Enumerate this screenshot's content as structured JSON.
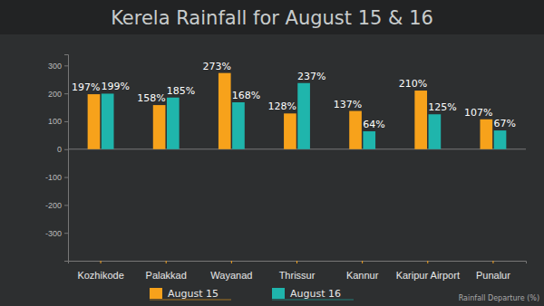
{
  "chart_data": {
    "type": "bar",
    "title": "Kerela Rainfall for August 15 & 16",
    "annotation": "Rainfall Departure (%)",
    "categories": [
      "Kozhikode",
      "Palakkad",
      "Wayanad",
      "Thrissur",
      "Kannur",
      "Karipur Airport",
      "Punalur"
    ],
    "series": [
      {
        "name": "August 15",
        "color": "#f7a21b",
        "values": [
          197,
          158,
          273,
          128,
          137,
          210,
          107
        ],
        "value_labels": [
          "197%",
          "158%",
          "273%",
          "128%",
          "137%",
          "210%",
          "107%"
        ]
      },
      {
        "name": "August 16",
        "color": "#1fb5ac",
        "values": [
          199,
          185,
          168,
          237,
          64,
          125,
          67
        ],
        "value_labels": [
          "199%",
          "185%",
          "168%",
          "237%",
          "64%",
          "125%",
          "67%"
        ]
      }
    ],
    "ylim": [
      -400,
      340
    ],
    "yticks": [
      -300,
      -200,
      -100,
      0,
      100,
      200,
      300
    ],
    "grid": false,
    "data_labels": true,
    "legend": "bottom"
  }
}
